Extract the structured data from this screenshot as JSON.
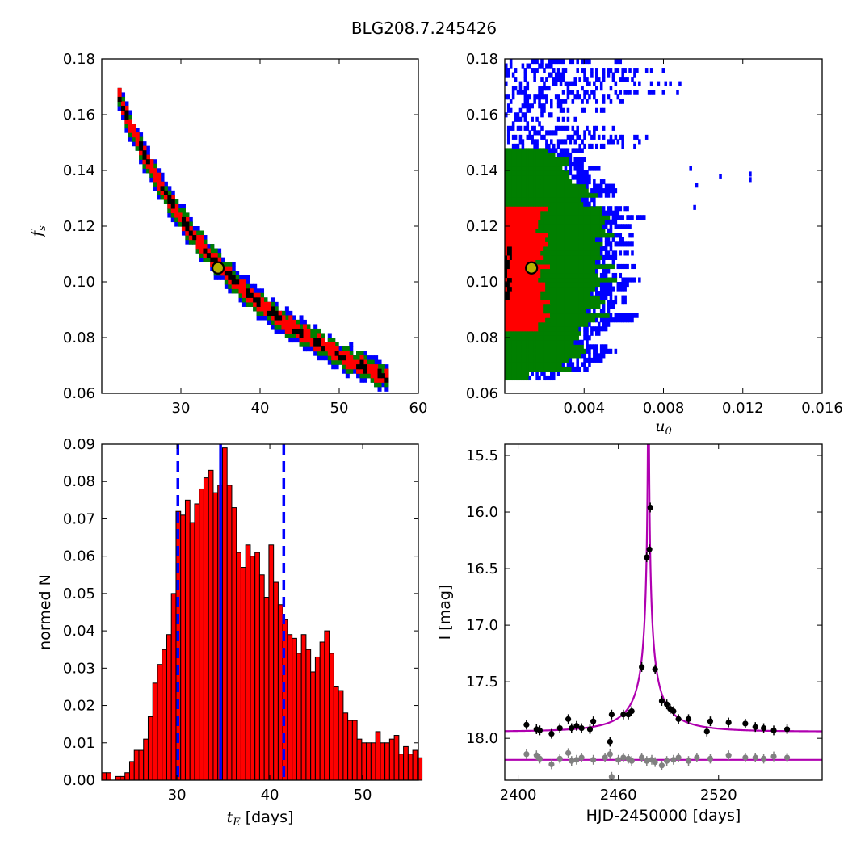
{
  "figure": {
    "title": "BLG208.7.245426"
  },
  "chart_data": [
    {
      "id": "fs-vs-tE",
      "type": "heatmap",
      "xlim": [
        20,
        60
      ],
      "ylim": [
        0.06,
        0.18
      ],
      "xticks": [
        30,
        40,
        50,
        60
      ],
      "yticks": [
        0.06,
        0.08,
        0.1,
        0.12,
        0.14,
        0.16,
        0.18
      ],
      "xticklabels": [
        "30",
        "40",
        "50",
        "60"
      ],
      "yticklabels": [
        "0.06",
        "0.08",
        "0.10",
        "0.12",
        "0.14",
        "0.16",
        "0.18"
      ],
      "ylabel_main": "f",
      "ylabel_sub": "s",
      "curve": {
        "a": 3.65,
        "b": -1.0
      },
      "band_x_range": [
        22,
        56
      ],
      "levels": [
        {
          "name": "outer",
          "color": "#0000ff",
          "half_width": 0.0042
        },
        {
          "name": "2sigma",
          "color": "#007f00",
          "half_width": 0.0031
        },
        {
          "name": "1sigma",
          "color": "#ff0000",
          "half_width": 0.0019
        },
        {
          "name": "core",
          "color": "#000000",
          "half_width": 0.0007
        }
      ],
      "best_fit": {
        "x": 34.7,
        "y": 0.105
      }
    },
    {
      "id": "fs-vs-u0",
      "type": "heatmap",
      "xlim": [
        0.0,
        0.016
      ],
      "ylim": [
        0.06,
        0.18
      ],
      "xticks": [
        0.004,
        0.008,
        0.012,
        0.016
      ],
      "yticks": [
        0.06,
        0.08,
        0.1,
        0.12,
        0.14,
        0.16,
        0.18
      ],
      "xticklabels": [
        "0.004",
        "0.008",
        "0.012",
        "0.016"
      ],
      "yticklabels": [
        "0.06",
        "0.08",
        "0.10",
        "0.12",
        "0.14",
        "0.16",
        "0.18"
      ],
      "xlabel_main": "u",
      "xlabel_sub": "0",
      "levels": [
        {
          "name": "outer",
          "color": "#0000ff"
        },
        {
          "name": "2sigma",
          "color": "#007f00"
        },
        {
          "name": "1sigma",
          "color": "#ff0000"
        },
        {
          "name": "core",
          "color": "#000000"
        }
      ],
      "best_fit": {
        "x": 0.00135,
        "y": 0.105
      }
    },
    {
      "id": "tE-histogram",
      "type": "bar",
      "xlim": [
        21.9,
        56.0
      ],
      "ylim": [
        0.0,
        0.09
      ],
      "xticks": [
        30,
        40,
        50
      ],
      "yticks": [
        0.0,
        0.01,
        0.02,
        0.03,
        0.04,
        0.05,
        0.06,
        0.07,
        0.08,
        0.09
      ],
      "xticklabels": [
        "30",
        "40",
        "50"
      ],
      "yticklabels": [
        "0.00",
        "0.01",
        "0.02",
        "0.03",
        "0.04",
        "0.05",
        "0.06",
        "0.07",
        "0.08",
        "0.09"
      ],
      "ylabel": "normed N",
      "xlabel_main": "t",
      "xlabel_sub": "E",
      "xlabel_unit": " [days]",
      "bar_color": "#ff0000",
      "bin_start": 21.9,
      "bin_width": 0.5,
      "values": [
        0.002,
        0.002,
        0.0,
        0.001,
        0.001,
        0.002,
        0.005,
        0.008,
        0.008,
        0.011,
        0.017,
        0.026,
        0.031,
        0.035,
        0.039,
        0.05,
        0.072,
        0.071,
        0.075,
        0.069,
        0.074,
        0.078,
        0.081,
        0.083,
        0.077,
        0.079,
        0.089,
        0.079,
        0.073,
        0.061,
        0.057,
        0.063,
        0.06,
        0.061,
        0.055,
        0.049,
        0.063,
        0.053,
        0.047,
        0.043,
        0.039,
        0.038,
        0.034,
        0.039,
        0.035,
        0.029,
        0.033,
        0.037,
        0.04,
        0.034,
        0.025,
        0.024,
        0.018,
        0.016,
        0.016,
        0.011,
        0.01,
        0.01,
        0.01,
        0.013,
        0.01,
        0.01,
        0.011,
        0.012,
        0.007,
        0.009,
        0.007,
        0.008,
        0.006
      ],
      "median": 34.7,
      "lower": 30.1,
      "upper": 41.5,
      "line_color": "#0000ff"
    },
    {
      "id": "lightcurve",
      "type": "scatter",
      "xlim": [
        2392,
        2582
      ],
      "ylim": [
        18.37,
        15.4
      ],
      "xticks": [
        2400,
        2460,
        2520
      ],
      "yticks": [
        15.5,
        16.0,
        16.5,
        17.0,
        17.5,
        18.0
      ],
      "xticklabels": [
        "2400",
        "2460",
        "2520"
      ],
      "yticklabels": [
        "15.5",
        "16.0",
        "16.5",
        "17.0",
        "17.5",
        "18.0"
      ],
      "xlabel": "HJD-2450000 [days]",
      "ylabel": "I [mag]",
      "model_color": "#b000b0",
      "model": {
        "t0": 2478.0,
        "tE": 34.7,
        "u0": 0.00135,
        "fs": 0.105,
        "base_mag": 17.94
      },
      "baseline2": 18.19,
      "event_points": {
        "color": "#000000",
        "points": [
          [
            2405,
            17.88
          ],
          [
            2411,
            17.92
          ],
          [
            2413,
            17.93
          ],
          [
            2420,
            17.96
          ],
          [
            2425,
            17.91
          ],
          [
            2430,
            17.83
          ],
          [
            2432,
            17.91
          ],
          [
            2435,
            17.89
          ],
          [
            2438,
            17.91
          ],
          [
            2443,
            17.92
          ],
          [
            2445,
            17.85
          ],
          [
            2455,
            18.03
          ],
          [
            2456,
            17.79
          ],
          [
            2463,
            17.79
          ],
          [
            2466,
            17.79
          ],
          [
            2468,
            17.76
          ],
          [
            2474,
            17.37
          ],
          [
            2477,
            16.4
          ],
          [
            2478.6,
            16.33
          ],
          [
            2479.1,
            15.96
          ],
          [
            2482,
            17.39
          ],
          [
            2486,
            17.67
          ],
          [
            2489,
            17.7
          ],
          [
            2491,
            17.74
          ],
          [
            2493,
            17.76
          ],
          [
            2496,
            17.83
          ],
          [
            2502,
            17.83
          ],
          [
            2513,
            17.94
          ],
          [
            2515,
            17.85
          ],
          [
            2526,
            17.86
          ],
          [
            2536,
            17.87
          ],
          [
            2542,
            17.9
          ],
          [
            2547,
            17.91
          ],
          [
            2553,
            17.93
          ],
          [
            2561,
            17.92
          ]
        ]
      },
      "comparison_points": {
        "color": "#808080",
        "points": [
          [
            2405,
            18.14
          ],
          [
            2411,
            18.15
          ],
          [
            2413,
            18.18
          ],
          [
            2420,
            18.23
          ],
          [
            2425,
            18.18
          ],
          [
            2430,
            18.13
          ],
          [
            2432,
            18.2
          ],
          [
            2435,
            18.19
          ],
          [
            2438,
            18.17
          ],
          [
            2445,
            18.19
          ],
          [
            2452,
            18.17
          ],
          [
            2455,
            18.14
          ],
          [
            2456,
            18.34
          ],
          [
            2460,
            18.19
          ],
          [
            2463,
            18.17
          ],
          [
            2466,
            18.18
          ],
          [
            2468,
            18.2
          ],
          [
            2474,
            18.17
          ],
          [
            2477,
            18.2
          ],
          [
            2480,
            18.19
          ],
          [
            2482,
            18.21
          ],
          [
            2486,
            18.24
          ],
          [
            2489,
            18.2
          ],
          [
            2493,
            18.19
          ],
          [
            2496,
            18.17
          ],
          [
            2502,
            18.2
          ],
          [
            2507,
            18.17
          ],
          [
            2515,
            18.18
          ],
          [
            2526,
            18.15
          ],
          [
            2536,
            18.17
          ],
          [
            2542,
            18.17
          ],
          [
            2547,
            18.18
          ],
          [
            2553,
            18.16
          ],
          [
            2561,
            18.17
          ]
        ]
      }
    }
  ]
}
